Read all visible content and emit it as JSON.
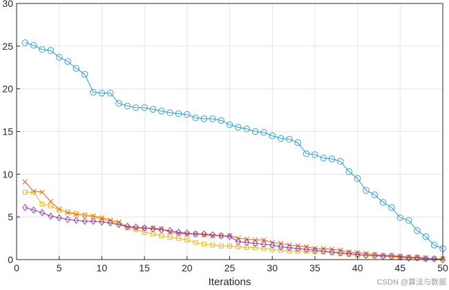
{
  "chart_data": {
    "type": "line",
    "title": "",
    "xlabel": "Iterations",
    "ylabel": "",
    "xlim": [
      0,
      50
    ],
    "ylim": [
      0,
      30
    ],
    "xticks": [
      0,
      5,
      10,
      15,
      20,
      25,
      30,
      35,
      40,
      45,
      50
    ],
    "yticks": [
      0,
      5,
      10,
      15,
      20,
      25,
      30
    ],
    "grid": true,
    "x": [
      1,
      2,
      3,
      4,
      5,
      6,
      7,
      8,
      9,
      10,
      11,
      12,
      13,
      14,
      15,
      16,
      17,
      18,
      19,
      20,
      21,
      22,
      23,
      24,
      25,
      26,
      27,
      28,
      29,
      30,
      31,
      32,
      33,
      34,
      35,
      36,
      37,
      38,
      39,
      40,
      41,
      42,
      43,
      44,
      45,
      46,
      47,
      48,
      49,
      50
    ],
    "series": [
      {
        "color": "#3a9fcc",
        "marker": "circle",
        "values": [
          25.4,
          25.1,
          24.6,
          24.5,
          23.7,
          23.2,
          22.4,
          21.7,
          19.6,
          19.5,
          19.5,
          18.3,
          18.0,
          17.8,
          17.8,
          17.6,
          17.4,
          17.2,
          17.1,
          17.0,
          16.6,
          16.5,
          16.5,
          16.3,
          15.8,
          15.5,
          15.3,
          15.0,
          14.9,
          14.5,
          14.2,
          14.1,
          13.7,
          12.4,
          12.3,
          11.9,
          11.8,
          11.5,
          10.3,
          9.5,
          8.1,
          7.6,
          6.7,
          6.1,
          4.9,
          4.6,
          3.4,
          2.7,
          1.7,
          1.3
        ]
      },
      {
        "color": "#e0651f",
        "marker": "x",
        "values": [
          9.1,
          8.0,
          7.9,
          6.8,
          5.9,
          5.5,
          5.3,
          5.2,
          5.1,
          4.9,
          4.6,
          4.4,
          3.8,
          3.7,
          3.7,
          3.7,
          3.6,
          3.2,
          3.1,
          3.0,
          3.0,
          2.9,
          2.8,
          2.8,
          2.8,
          2.5,
          2.4,
          2.3,
          2.3,
          2.0,
          1.9,
          1.7,
          1.6,
          1.5,
          1.3,
          1.3,
          1.2,
          1.1,
          0.9,
          0.8,
          0.7,
          0.6,
          0.5,
          0.5,
          0.4,
          0.3,
          0.3,
          0.2,
          0.1,
          0.1
        ]
      },
      {
        "color": "#eab52e",
        "marker": "square",
        "values": [
          7.9,
          7.9,
          6.5,
          6.3,
          5.8,
          5.6,
          5.4,
          5.2,
          5.0,
          4.7,
          4.5,
          4.2,
          3.7,
          3.5,
          3.2,
          3.0,
          2.8,
          2.6,
          2.5,
          2.3,
          2.0,
          1.8,
          1.7,
          1.6,
          1.6,
          1.5,
          1.4,
          1.4,
          1.3,
          1.2,
          1.1,
          1.0,
          1.0,
          1.0,
          0.9,
          0.9,
          0.8,
          0.7,
          0.6,
          0.5,
          0.5,
          0.4,
          0.4,
          0.3,
          0.3,
          0.2,
          0.2,
          0.1,
          0.1,
          0.1
        ]
      },
      {
        "color": "#8e45a8",
        "marker": "diamond",
        "values": [
          6.1,
          5.8,
          5.5,
          5.1,
          4.9,
          4.7,
          4.6,
          4.5,
          4.5,
          4.4,
          4.3,
          4.1,
          3.9,
          3.8,
          3.7,
          3.6,
          3.5,
          3.4,
          3.2,
          3.1,
          3.0,
          3.0,
          2.9,
          2.8,
          2.7,
          2.1,
          2.0,
          1.9,
          1.8,
          1.7,
          1.5,
          1.4,
          1.3,
          1.2,
          1.1,
          1.0,
          0.9,
          0.8,
          0.7,
          0.6,
          0.5,
          0.5,
          0.4,
          0.4,
          0.3,
          0.2,
          0.2,
          0.1,
          0.1,
          0.0
        ]
      }
    ]
  },
  "watermark": "CSDN @算法与数据"
}
